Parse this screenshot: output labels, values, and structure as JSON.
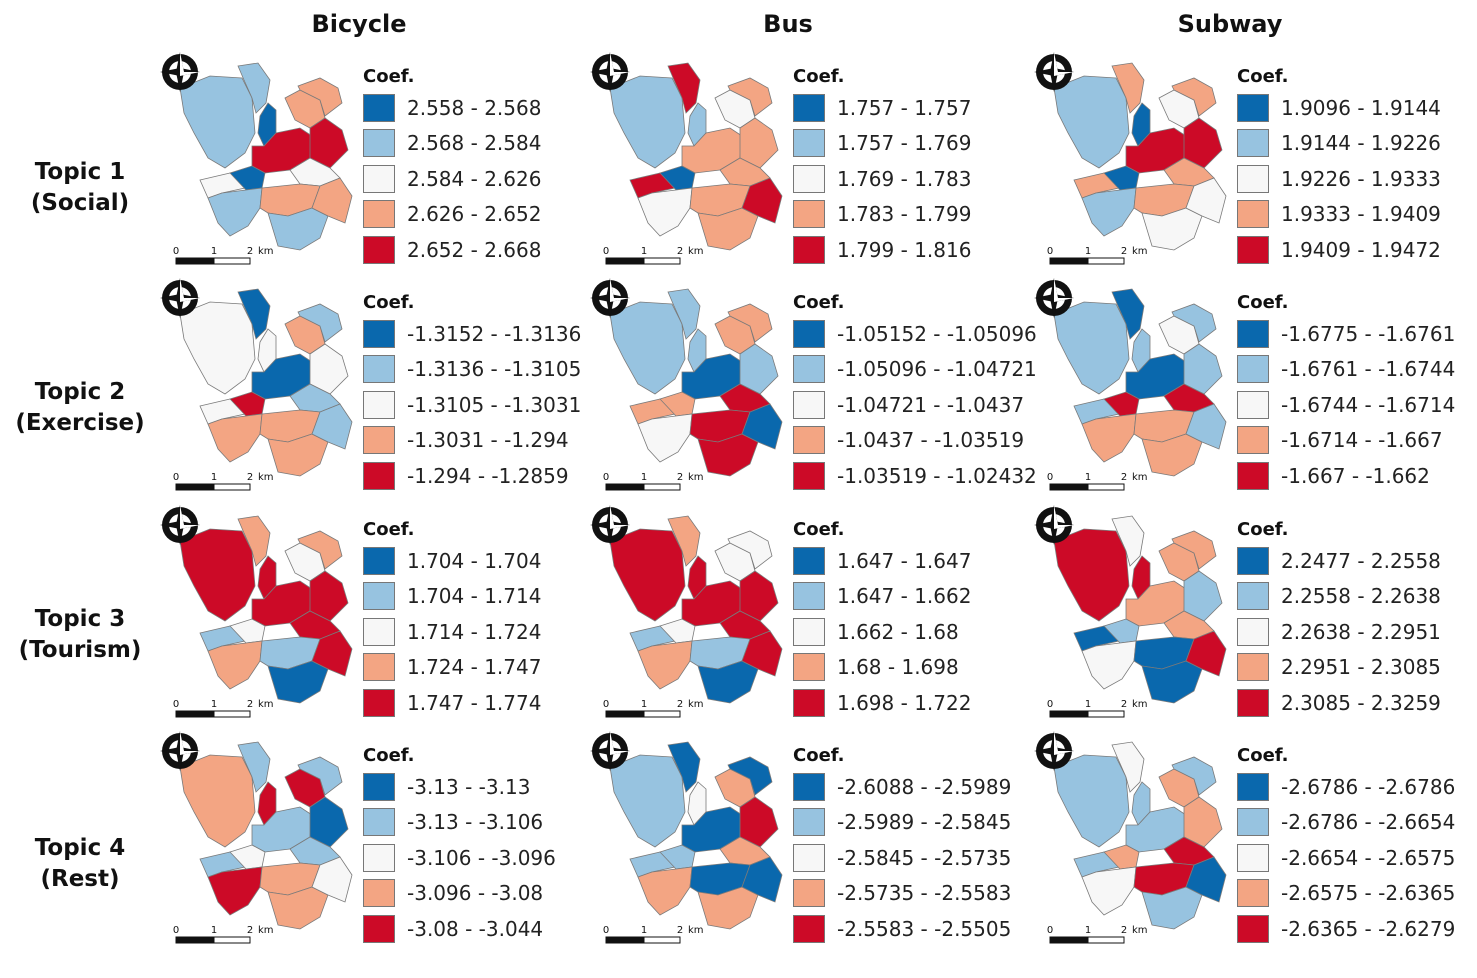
{
  "columns": [
    "Bicycle",
    "Bus",
    "Subway"
  ],
  "rows": [
    {
      "label1": "Topic 1",
      "label2": "(Social)"
    },
    {
      "label1": "Topic 2",
      "label2": "(Exercise)"
    },
    {
      "label1": "Topic 3",
      "label2": "(Tourism)"
    },
    {
      "label1": "Topic 4",
      "label2": "(Rest)"
    }
  ],
  "legend_title": "Coef.",
  "scale_bar": {
    "ticks": [
      "0",
      "1",
      "2"
    ],
    "unit": "km"
  },
  "icons": {
    "north_arrow": "compass-rose-icon"
  },
  "class_colors": [
    "#0a68ad",
    "#97c3e0",
    "#f7f7f7",
    "#f3a583",
    "#cc0a27"
  ],
  "panels": [
    {
      "row": 0,
      "col": 0,
      "legend": [
        "2.558 - 2.568",
        "2.568 - 2.584",
        "2.584 - 2.626",
        "2.626 - 2.652",
        "2.652 - 2.668"
      ],
      "regions": [
        1,
        1,
        0,
        3,
        3,
        4,
        2,
        4,
        0,
        1,
        2,
        3,
        1,
        3
      ]
    },
    {
      "row": 0,
      "col": 1,
      "legend": [
        "1.757 - 1.757",
        "1.757 - 1.769",
        "1.769 - 1.783",
        "1.783 - 1.799",
        "1.799 - 1.816"
      ],
      "regions": [
        1,
        4,
        1,
        2,
        3,
        3,
        4,
        3,
        0,
        2,
        3,
        3,
        3,
        4
      ]
    },
    {
      "row": 0,
      "col": 2,
      "legend": [
        "1.9096 - 1.9144",
        "1.9144 - 1.9226",
        "1.9226 - 1.9333",
        "1.9333 - 1.9409",
        "1.9409 - 1.9472"
      ],
      "regions": [
        1,
        3,
        0,
        2,
        3,
        4,
        3,
        4,
        0,
        1,
        3,
        3,
        2,
        2
      ]
    },
    {
      "row": 1,
      "col": 0,
      "legend": [
        "-1.3152 - -1.3136",
        "-1.3136 - -1.3105",
        "-1.3105 - -1.3031",
        "-1.3031 - -1.294",
        "-1.294 - -1.2859"
      ],
      "regions": [
        2,
        0,
        2,
        3,
        1,
        0,
        2,
        2,
        4,
        3,
        1,
        3,
        3,
        1
      ]
    },
    {
      "row": 1,
      "col": 1,
      "legend": [
        "-1.05152 - -1.05096",
        "-1.05096 - -1.04721",
        "-1.04721 - -1.0437",
        "-1.0437 - -1.03519",
        "-1.03519 - -1.02432"
      ],
      "regions": [
        1,
        1,
        1,
        3,
        3,
        0,
        3,
        1,
        3,
        2,
        4,
        4,
        4,
        0
      ]
    },
    {
      "row": 1,
      "col": 2,
      "legend": [
        "-1.6775 - -1.6761",
        "-1.6761 - -1.6744",
        "-1.6744 - -1.6714",
        "-1.6714 - -1.667",
        "-1.667 - -1.662"
      ],
      "regions": [
        1,
        0,
        1,
        2,
        1,
        0,
        1,
        1,
        4,
        3,
        4,
        3,
        3,
        1
      ]
    },
    {
      "row": 2,
      "col": 0,
      "legend": [
        "1.704 - 1.704",
        "1.704 - 1.714",
        "1.714 - 1.724",
        "1.724 - 1.747",
        "1.747 - 1.774"
      ],
      "regions": [
        4,
        3,
        4,
        2,
        3,
        4,
        1,
        4,
        2,
        3,
        4,
        1,
        0,
        4
      ]
    },
    {
      "row": 2,
      "col": 1,
      "legend": [
        "1.647 - 1.647",
        "1.647 - 1.662",
        "1.662 - 1.68",
        "1.68 - 1.698",
        "1.698 - 1.722"
      ],
      "regions": [
        4,
        3,
        4,
        2,
        2,
        4,
        1,
        4,
        2,
        3,
        4,
        1,
        0,
        4
      ]
    },
    {
      "row": 2,
      "col": 2,
      "legend": [
        "2.2477 - 2.2558",
        "2.2558 - 2.2638",
        "2.2638 - 2.2951",
        "2.2951 - 2.3085",
        "2.3085 - 2.3259"
      ],
      "regions": [
        4,
        2,
        4,
        3,
        3,
        3,
        0,
        1,
        1,
        2,
        3,
        0,
        0,
        4
      ]
    },
    {
      "row": 3,
      "col": 0,
      "legend": [
        "-3.13 - -3.13",
        "-3.13 - -3.106",
        "-3.106 - -3.096",
        "-3.096 - -3.08",
        "-3.08 - -3.044"
      ],
      "regions": [
        3,
        1,
        4,
        4,
        1,
        1,
        1,
        0,
        2,
        4,
        1,
        3,
        3,
        2
      ]
    },
    {
      "row": 3,
      "col": 1,
      "legend": [
        "-2.6088 - -2.5989",
        "-2.5989 - -2.5845",
        "-2.5845 - -2.5735",
        "-2.5735 - -2.5583",
        "-2.5583 - -2.5505"
      ],
      "regions": [
        1,
        0,
        2,
        3,
        0,
        0,
        1,
        4,
        1,
        3,
        3,
        0,
        3,
        0
      ]
    },
    {
      "row": 3,
      "col": 2,
      "legend": [
        "-2.6786 - -2.6786",
        "-2.6786 - -2.6654",
        "-2.6654 - -2.6575",
        "-2.6575 - -2.6365",
        "-2.6365 - -2.6279"
      ],
      "regions": [
        1,
        2,
        1,
        3,
        1,
        1,
        1,
        3,
        3,
        2,
        4,
        4,
        1,
        0
      ]
    }
  ]
}
